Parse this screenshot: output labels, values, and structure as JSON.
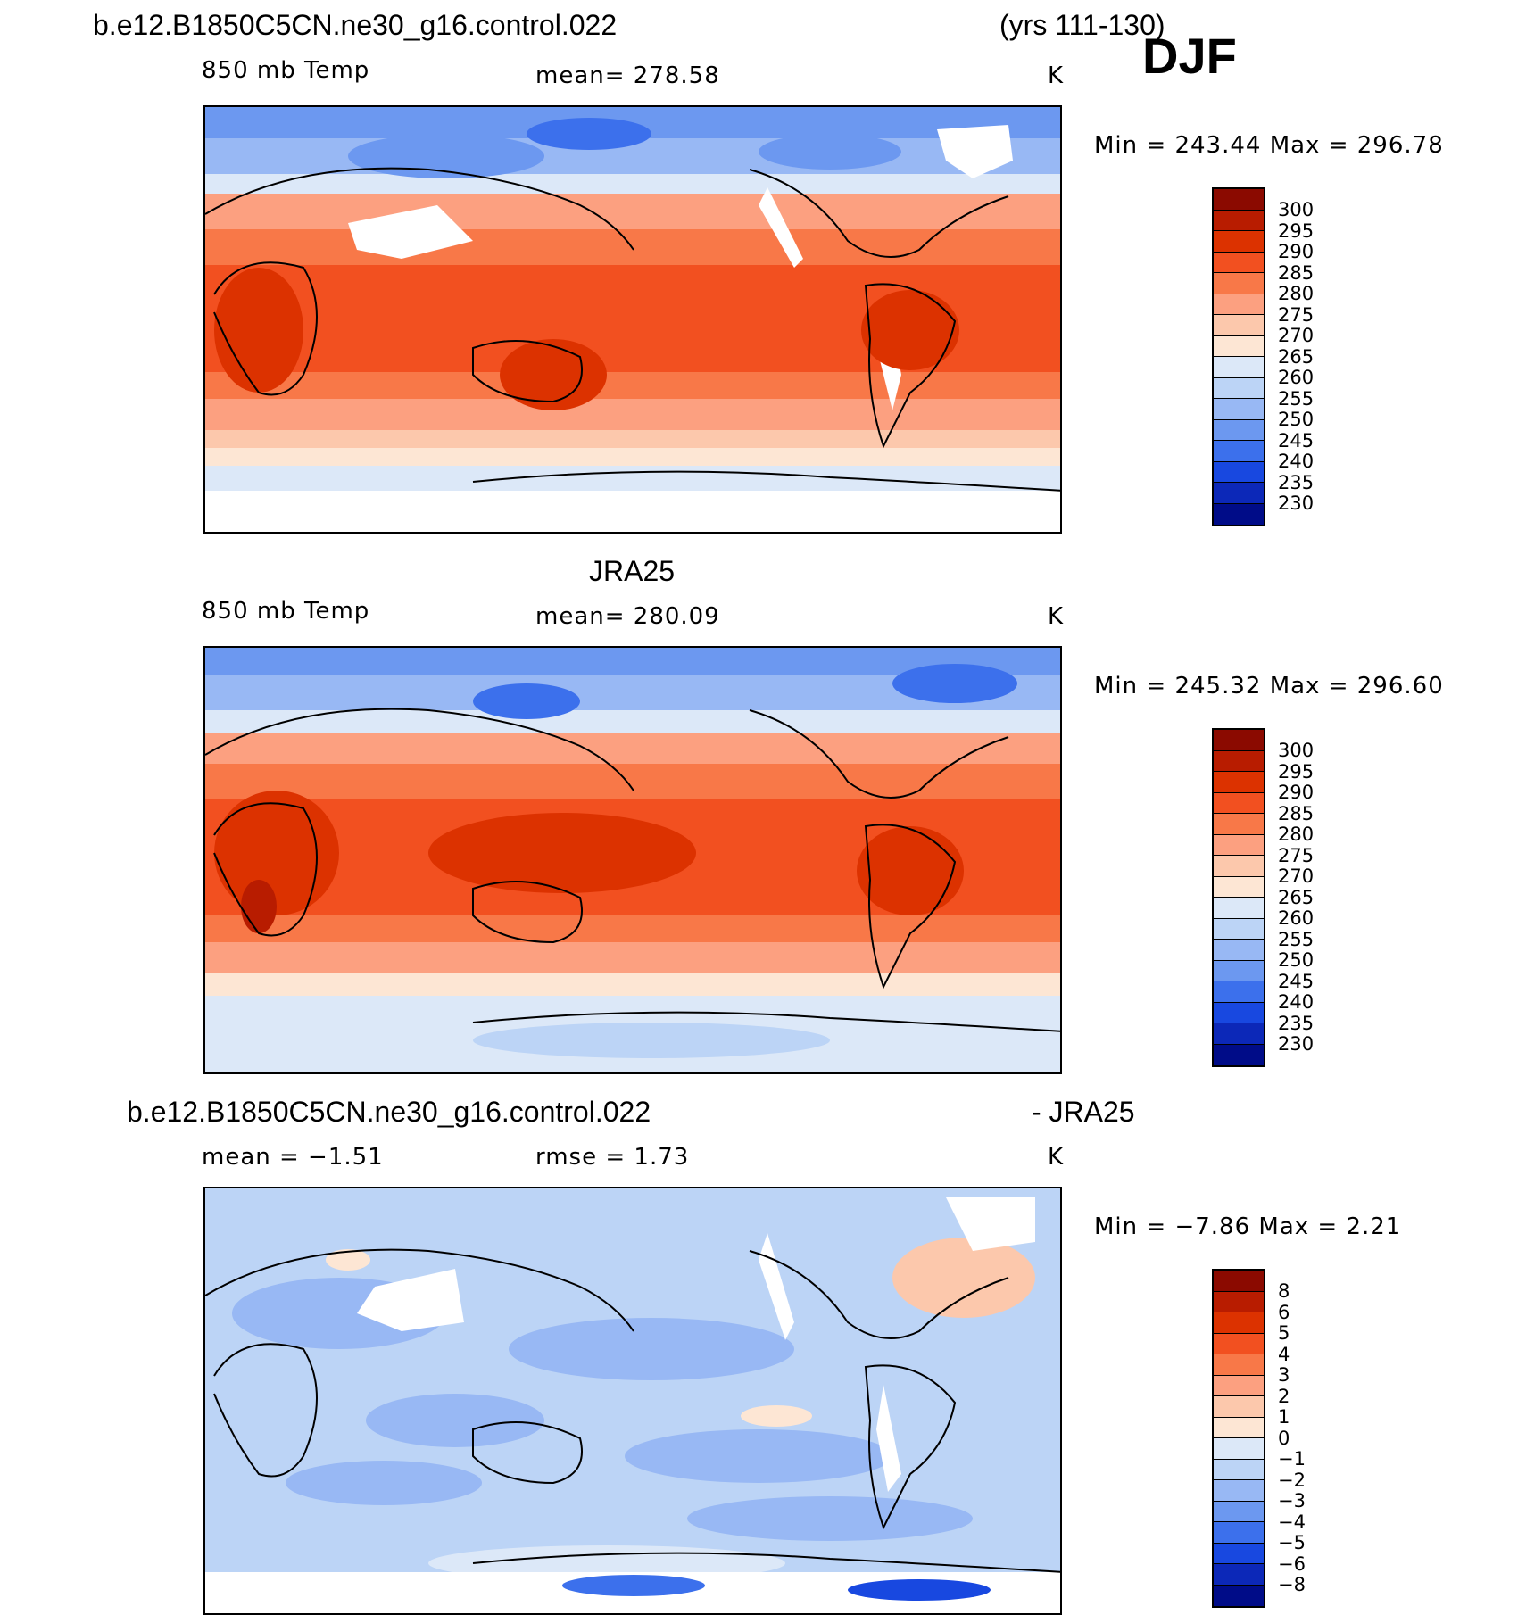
{
  "header": {
    "case_name": "b.e12.B1850C5CN.ne30_g16.control.022",
    "years": "(yrs 111-130)",
    "season": "DJF"
  },
  "panels": [
    {
      "id": "model",
      "heading": "",
      "variable": "850 mb Temp",
      "stat1": "mean=  278.58",
      "stat2": "",
      "units": "K",
      "minmax": "Min  =  243.44  Max  =  296.78",
      "colorbar_labels": [
        "300",
        "295",
        "290",
        "285",
        "280",
        "275",
        "270",
        "265",
        "260",
        "255",
        "250",
        "245",
        "240",
        "235",
        "230"
      ]
    },
    {
      "id": "obs",
      "heading": "JRA25",
      "variable": "850 mb Temp",
      "stat1": "mean=  280.09",
      "stat2": "",
      "units": "K",
      "minmax": "Min  =  245.32  Max  =  296.60",
      "colorbar_labels": [
        "300",
        "295",
        "290",
        "285",
        "280",
        "275",
        "270",
        "265",
        "260",
        "255",
        "250",
        "245",
        "240",
        "235",
        "230"
      ]
    },
    {
      "id": "diff",
      "heading_left": "b.e12.B1850C5CN.ne30_g16.control.022",
      "heading_right": "- JRA25",
      "stat1": "mean =    −1.51",
      "stat2": "rmse =     1.73",
      "units": "K",
      "minmax": "Min  =    −7.86  Max  =     2.21",
      "colorbar_labels": [
        "8",
        "6",
        "5",
        "4",
        "3",
        "2",
        "1",
        "0",
        "−1",
        "−2",
        "−3",
        "−4",
        "−5",
        "−6",
        "−8"
      ]
    }
  ],
  "colors": {
    "scale": [
      "#8b0a00",
      "#b81c00",
      "#dc3200",
      "#f25020",
      "#f87848",
      "#fca080",
      "#fcc8ac",
      "#fde6d4",
      "#dce8f8",
      "#bcd4f6",
      "#98b8f4",
      "#6c98f0",
      "#3c70ec",
      "#1848e0",
      "#0c28b8",
      "#000c88"
    ],
    "land_outline": "#000000",
    "missing": "#ffffff"
  }
}
